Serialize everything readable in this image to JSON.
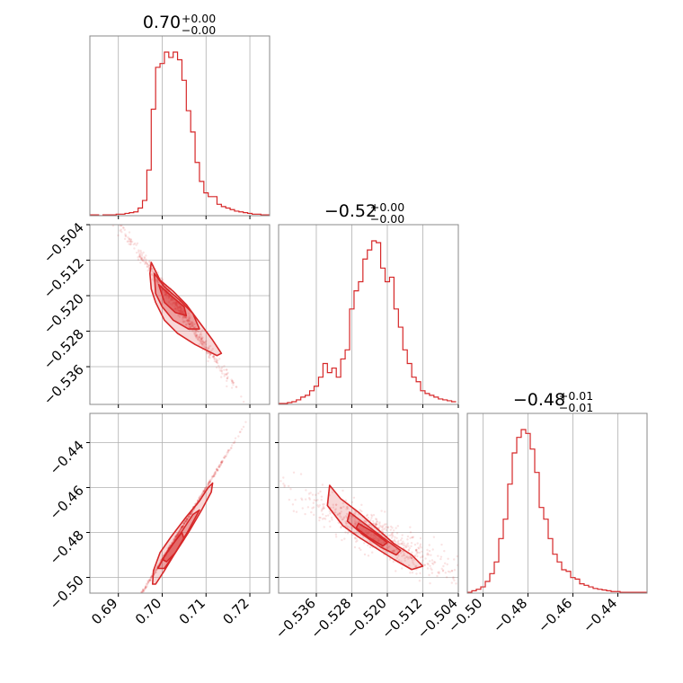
{
  "chart_data": {
    "type": "corner",
    "color": "#d62728",
    "parameters": [
      {
        "title": {
          "median": "0.70",
          "plus": "+0.00",
          "minus": "−0.00"
        },
        "range": [
          0.6835,
          0.7245
        ],
        "ticks": [
          0.69,
          0.7,
          0.71,
          0.72
        ],
        "tick_labels": [
          "0.69",
          "0.70",
          "0.71",
          "0.72"
        ],
        "hist_bins": [
          0.6835,
          0.6845,
          0.6855,
          0.6865,
          0.6875,
          0.6885,
          0.6895,
          0.6905,
          0.6915,
          0.6925,
          0.6935,
          0.6945,
          0.6955,
          0.6965,
          0.6975,
          0.6985,
          0.6995,
          0.7005,
          0.7015,
          0.7025,
          0.7035,
          0.7045,
          0.7055,
          0.7065,
          0.7075,
          0.7085,
          0.7095,
          0.7105,
          0.7115,
          0.7125,
          0.7135,
          0.7145,
          0.7155,
          0.7165,
          0.7175,
          0.7185,
          0.7195,
          0.7205,
          0.7215,
          0.7225,
          0.7235,
          0.7245
        ],
        "hist_counts": [
          1,
          1,
          0,
          1,
          1,
          1,
          2,
          2,
          3,
          4,
          5,
          10,
          20,
          60,
          140,
          195,
          200,
          215,
          208,
          215,
          205,
          178,
          138,
          110,
          70,
          45,
          30,
          25,
          25,
          15,
          12,
          10,
          8,
          6,
          5,
          4,
          3,
          2,
          2,
          1,
          1
        ]
      },
      {
        "title": {
          "median": "−0.52",
          "plus": "+0.00",
          "minus": "−0.00"
        },
        "range": [
          -0.5445,
          -0.504
        ],
        "ticks": [
          -0.536,
          -0.528,
          -0.52,
          -0.512,
          -0.504
        ],
        "tick_labels": [
          "−0.536",
          "−0.528",
          "−0.520",
          "−0.512",
          "−0.504"
        ],
        "hist_bins": [
          -0.5445,
          -0.5435,
          -0.5425,
          -0.5415,
          -0.5405,
          -0.5395,
          -0.5385,
          -0.5375,
          -0.5365,
          -0.5355,
          -0.5345,
          -0.5335,
          -0.5325,
          -0.5315,
          -0.5305,
          -0.5295,
          -0.5285,
          -0.5275,
          -0.5265,
          -0.5255,
          -0.5245,
          -0.5235,
          -0.5225,
          -0.5215,
          -0.5205,
          -0.5195,
          -0.5185,
          -0.5175,
          -0.5165,
          -0.5155,
          -0.5145,
          -0.5135,
          -0.5125,
          -0.5115,
          -0.5105,
          -0.5095,
          -0.5085,
          -0.5075,
          -0.5065,
          -0.5055,
          -0.5045
        ],
        "hist_counts": [
          1,
          1,
          2,
          3,
          5,
          8,
          10,
          15,
          20,
          30,
          45,
          35,
          40,
          30,
          50,
          60,
          105,
          125,
          135,
          160,
          170,
          180,
          178,
          150,
          135,
          140,
          105,
          85,
          60,
          45,
          30,
          25,
          15,
          12,
          10,
          8,
          6,
          5,
          4,
          3
        ]
      },
      {
        "title": {
          "median": "−0.48",
          "plus": "+0.01",
          "minus": "−0.01"
        },
        "range": [
          -0.507,
          -0.427
        ],
        "ticks": [
          -0.5,
          -0.48,
          -0.46,
          -0.44
        ],
        "tick_labels": [
          "−0.50",
          "−0.48",
          "−0.46",
          "−0.44"
        ],
        "hist_bins": [
          -0.507,
          -0.505,
          -0.503,
          -0.501,
          -0.499,
          -0.497,
          -0.495,
          -0.493,
          -0.491,
          -0.489,
          -0.487,
          -0.485,
          -0.483,
          -0.481,
          -0.479,
          -0.477,
          -0.475,
          -0.473,
          -0.471,
          -0.469,
          -0.467,
          -0.465,
          -0.463,
          -0.461,
          -0.459,
          -0.457,
          -0.455,
          -0.453,
          -0.451,
          -0.449,
          -0.447,
          -0.445,
          -0.443,
          -0.441,
          -0.439,
          -0.437,
          -0.435,
          -0.433,
          -0.431,
          -0.429,
          -0.427
        ],
        "hist_counts": [
          1,
          3,
          5,
          8,
          15,
          25,
          40,
          70,
          95,
          140,
          180,
          200,
          210,
          205,
          185,
          155,
          110,
          95,
          70,
          50,
          40,
          30,
          28,
          20,
          18,
          12,
          10,
          8,
          6,
          5,
          4,
          3,
          2,
          2,
          1,
          1,
          1,
          1,
          1,
          1
        ]
      }
    ],
    "pairs": [
      {
        "x_param": 0,
        "y_param": 1,
        "center": [
          0.7035,
          -0.5225
        ],
        "direction": [
          0.0142,
          -0.0205
        ],
        "width": 0.0028,
        "contours": [
          [
            [
              0.6975,
              -0.5125
            ],
            [
              0.6985,
              -0.5145
            ],
            [
              0.6995,
              -0.5165
            ],
            [
              0.7025,
              -0.519
            ],
            [
              0.7055,
              -0.522
            ],
            [
              0.7085,
              -0.526
            ],
            [
              0.7115,
              -0.53
            ],
            [
              0.7135,
              -0.533
            ],
            [
              0.7125,
              -0.5335
            ],
            [
              0.7075,
              -0.531
            ],
            [
              0.7035,
              -0.5285
            ],
            [
              0.7005,
              -0.5255
            ],
            [
              0.6985,
              -0.5215
            ],
            [
              0.6975,
              -0.5185
            ],
            [
              0.6972,
              -0.515
            ]
          ],
          [
            [
              0.6982,
              -0.515
            ],
            [
              0.7005,
              -0.518
            ],
            [
              0.704,
              -0.521
            ],
            [
              0.707,
              -0.524
            ],
            [
              0.7085,
              -0.5275
            ],
            [
              0.706,
              -0.5275
            ],
            [
              0.7025,
              -0.5255
            ],
            [
              0.7,
              -0.5225
            ],
            [
              0.6985,
              -0.5195
            ]
          ],
          [
            [
              0.6992,
              -0.5175
            ],
            [
              0.702,
              -0.52
            ],
            [
              0.705,
              -0.5225
            ],
            [
              0.7055,
              -0.5245
            ],
            [
              0.703,
              -0.5238
            ],
            [
              0.7005,
              -0.5215
            ]
          ]
        ]
      },
      {
        "x_param": 0,
        "y_param": 2,
        "center": [
          0.7035,
          -0.481
        ],
        "direction": [
          0.014,
          0.045
        ],
        "width": 0.0022,
        "contours": [
          [
            [
              0.6978,
              -0.503
            ],
            [
              0.698,
              -0.497
            ],
            [
              0.6995,
              -0.489
            ],
            [
              0.702,
              -0.482
            ],
            [
              0.7055,
              -0.473
            ],
            [
              0.7085,
              -0.466
            ],
            [
              0.7105,
              -0.46
            ],
            [
              0.7115,
              -0.458
            ],
            [
              0.7112,
              -0.462
            ],
            [
              0.709,
              -0.47
            ],
            [
              0.706,
              -0.48
            ],
            [
              0.703,
              -0.489
            ],
            [
              0.7005,
              -0.497
            ],
            [
              0.6985,
              -0.503
            ]
          ],
          [
            [
              0.699,
              -0.496
            ],
            [
              0.701,
              -0.489
            ],
            [
              0.704,
              -0.481
            ],
            [
              0.707,
              -0.472
            ],
            [
              0.7085,
              -0.47
            ],
            [
              0.706,
              -0.479
            ],
            [
              0.703,
              -0.489
            ],
            [
              0.7005,
              -0.496
            ]
          ],
          [
            [
              0.7,
              -0.492
            ],
            [
              0.7025,
              -0.485
            ],
            [
              0.7045,
              -0.48
            ],
            [
              0.705,
              -0.483
            ],
            [
              0.703,
              -0.489
            ],
            [
              0.701,
              -0.493
            ]
          ]
        ]
      },
      {
        "x_param": 1,
        "y_param": 2,
        "center": [
          -0.5225,
          -0.481
        ],
        "direction": [
          0.02,
          -0.022
        ],
        "width": 0.0022,
        "contours": [
          [
            [
              -0.533,
              -0.459
            ],
            [
              -0.5305,
              -0.465
            ],
            [
              -0.5265,
              -0.471
            ],
            [
              -0.5225,
              -0.478
            ],
            [
              -0.5185,
              -0.485
            ],
            [
              -0.5145,
              -0.49
            ],
            [
              -0.512,
              -0.495
            ],
            [
              -0.5145,
              -0.4965
            ],
            [
              -0.5185,
              -0.492
            ],
            [
              -0.5225,
              -0.487
            ],
            [
              -0.5265,
              -0.482
            ],
            [
              -0.53,
              -0.477
            ],
            [
              -0.5335,
              -0.468
            ]
          ],
          [
            [
              -0.5285,
              -0.471
            ],
            [
              -0.5245,
              -0.477
            ],
            [
              -0.5205,
              -0.483
            ],
            [
              -0.517,
              -0.488
            ],
            [
              -0.518,
              -0.49
            ],
            [
              -0.5215,
              -0.4865
            ],
            [
              -0.5255,
              -0.481
            ],
            [
              -0.529,
              -0.475
            ]
          ],
          [
            [
              -0.5265,
              -0.476
            ],
            [
              -0.523,
              -0.48
            ],
            [
              -0.52,
              -0.4845
            ],
            [
              -0.521,
              -0.486
            ],
            [
              -0.524,
              -0.4825
            ],
            [
              -0.527,
              -0.478
            ]
          ]
        ]
      }
    ],
    "grid": true
  }
}
